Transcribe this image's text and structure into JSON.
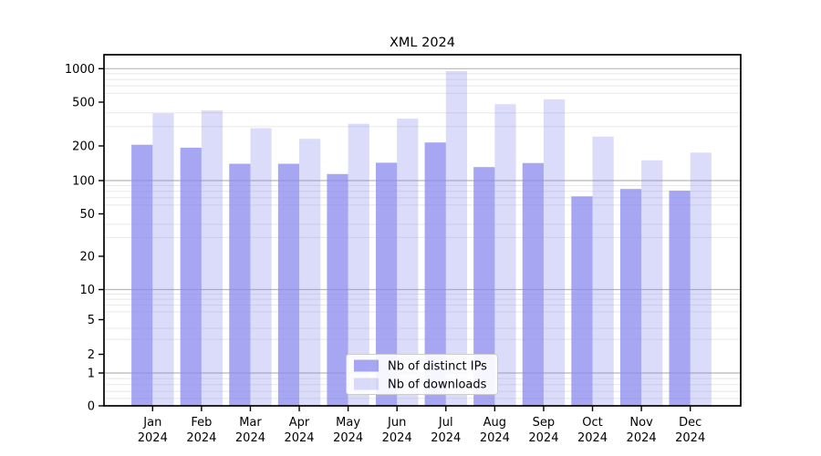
{
  "title": "XML 2024",
  "legend": {
    "items": [
      {
        "label": "Nb of distinct IPs",
        "series": "ips"
      },
      {
        "label": "Nb of downloads",
        "series": "downloads"
      }
    ]
  },
  "axes": {
    "y_tick_labels": [
      "0",
      "1",
      "2",
      "5",
      "10",
      "20",
      "50",
      "100",
      "200",
      "500",
      "1000"
    ],
    "x_month_labels": [
      "Jan",
      "Feb",
      "Mar",
      "Apr",
      "May",
      "Jun",
      "Jul",
      "Aug",
      "Sep",
      "Oct",
      "Nov",
      "Dec"
    ],
    "x_year_label": "2024"
  },
  "colors": {
    "bar_base": "#8888ee",
    "ips_alpha": 0.75,
    "downloads_alpha": 0.3,
    "grid_major": "#b8b8b8",
    "grid_minor": "#e8e8e8",
    "legend_border": "#cccccc"
  },
  "chart_data": {
    "type": "bar",
    "title": "XML 2024",
    "categories": [
      "Jan 2024",
      "Feb 2024",
      "Mar 2024",
      "Apr 2024",
      "May 2024",
      "Jun 2024",
      "Jul 2024",
      "Aug 2024",
      "Sep 2024",
      "Oct 2024",
      "Nov 2024",
      "Dec 2024"
    ],
    "series": [
      {
        "name": "Nb of distinct IPs",
        "values": [
          205,
          193,
          140,
          140,
          114,
          143,
          215,
          131,
          142,
          72,
          84,
          81
        ]
      },
      {
        "name": "Nb of downloads",
        "values": [
          395,
          420,
          290,
          232,
          318,
          354,
          950,
          479,
          530,
          243,
          150,
          175
        ]
      }
    ],
    "xlabel": "",
    "ylabel": "",
    "yscale": "asinh (log-like, 1-2-5 ticks)",
    "y_ticks": [
      0,
      1,
      2,
      5,
      10,
      20,
      50,
      100,
      200,
      500,
      1000
    ],
    "ylim": [
      0,
      1300
    ],
    "grid": true,
    "legend_position": "lower center"
  }
}
